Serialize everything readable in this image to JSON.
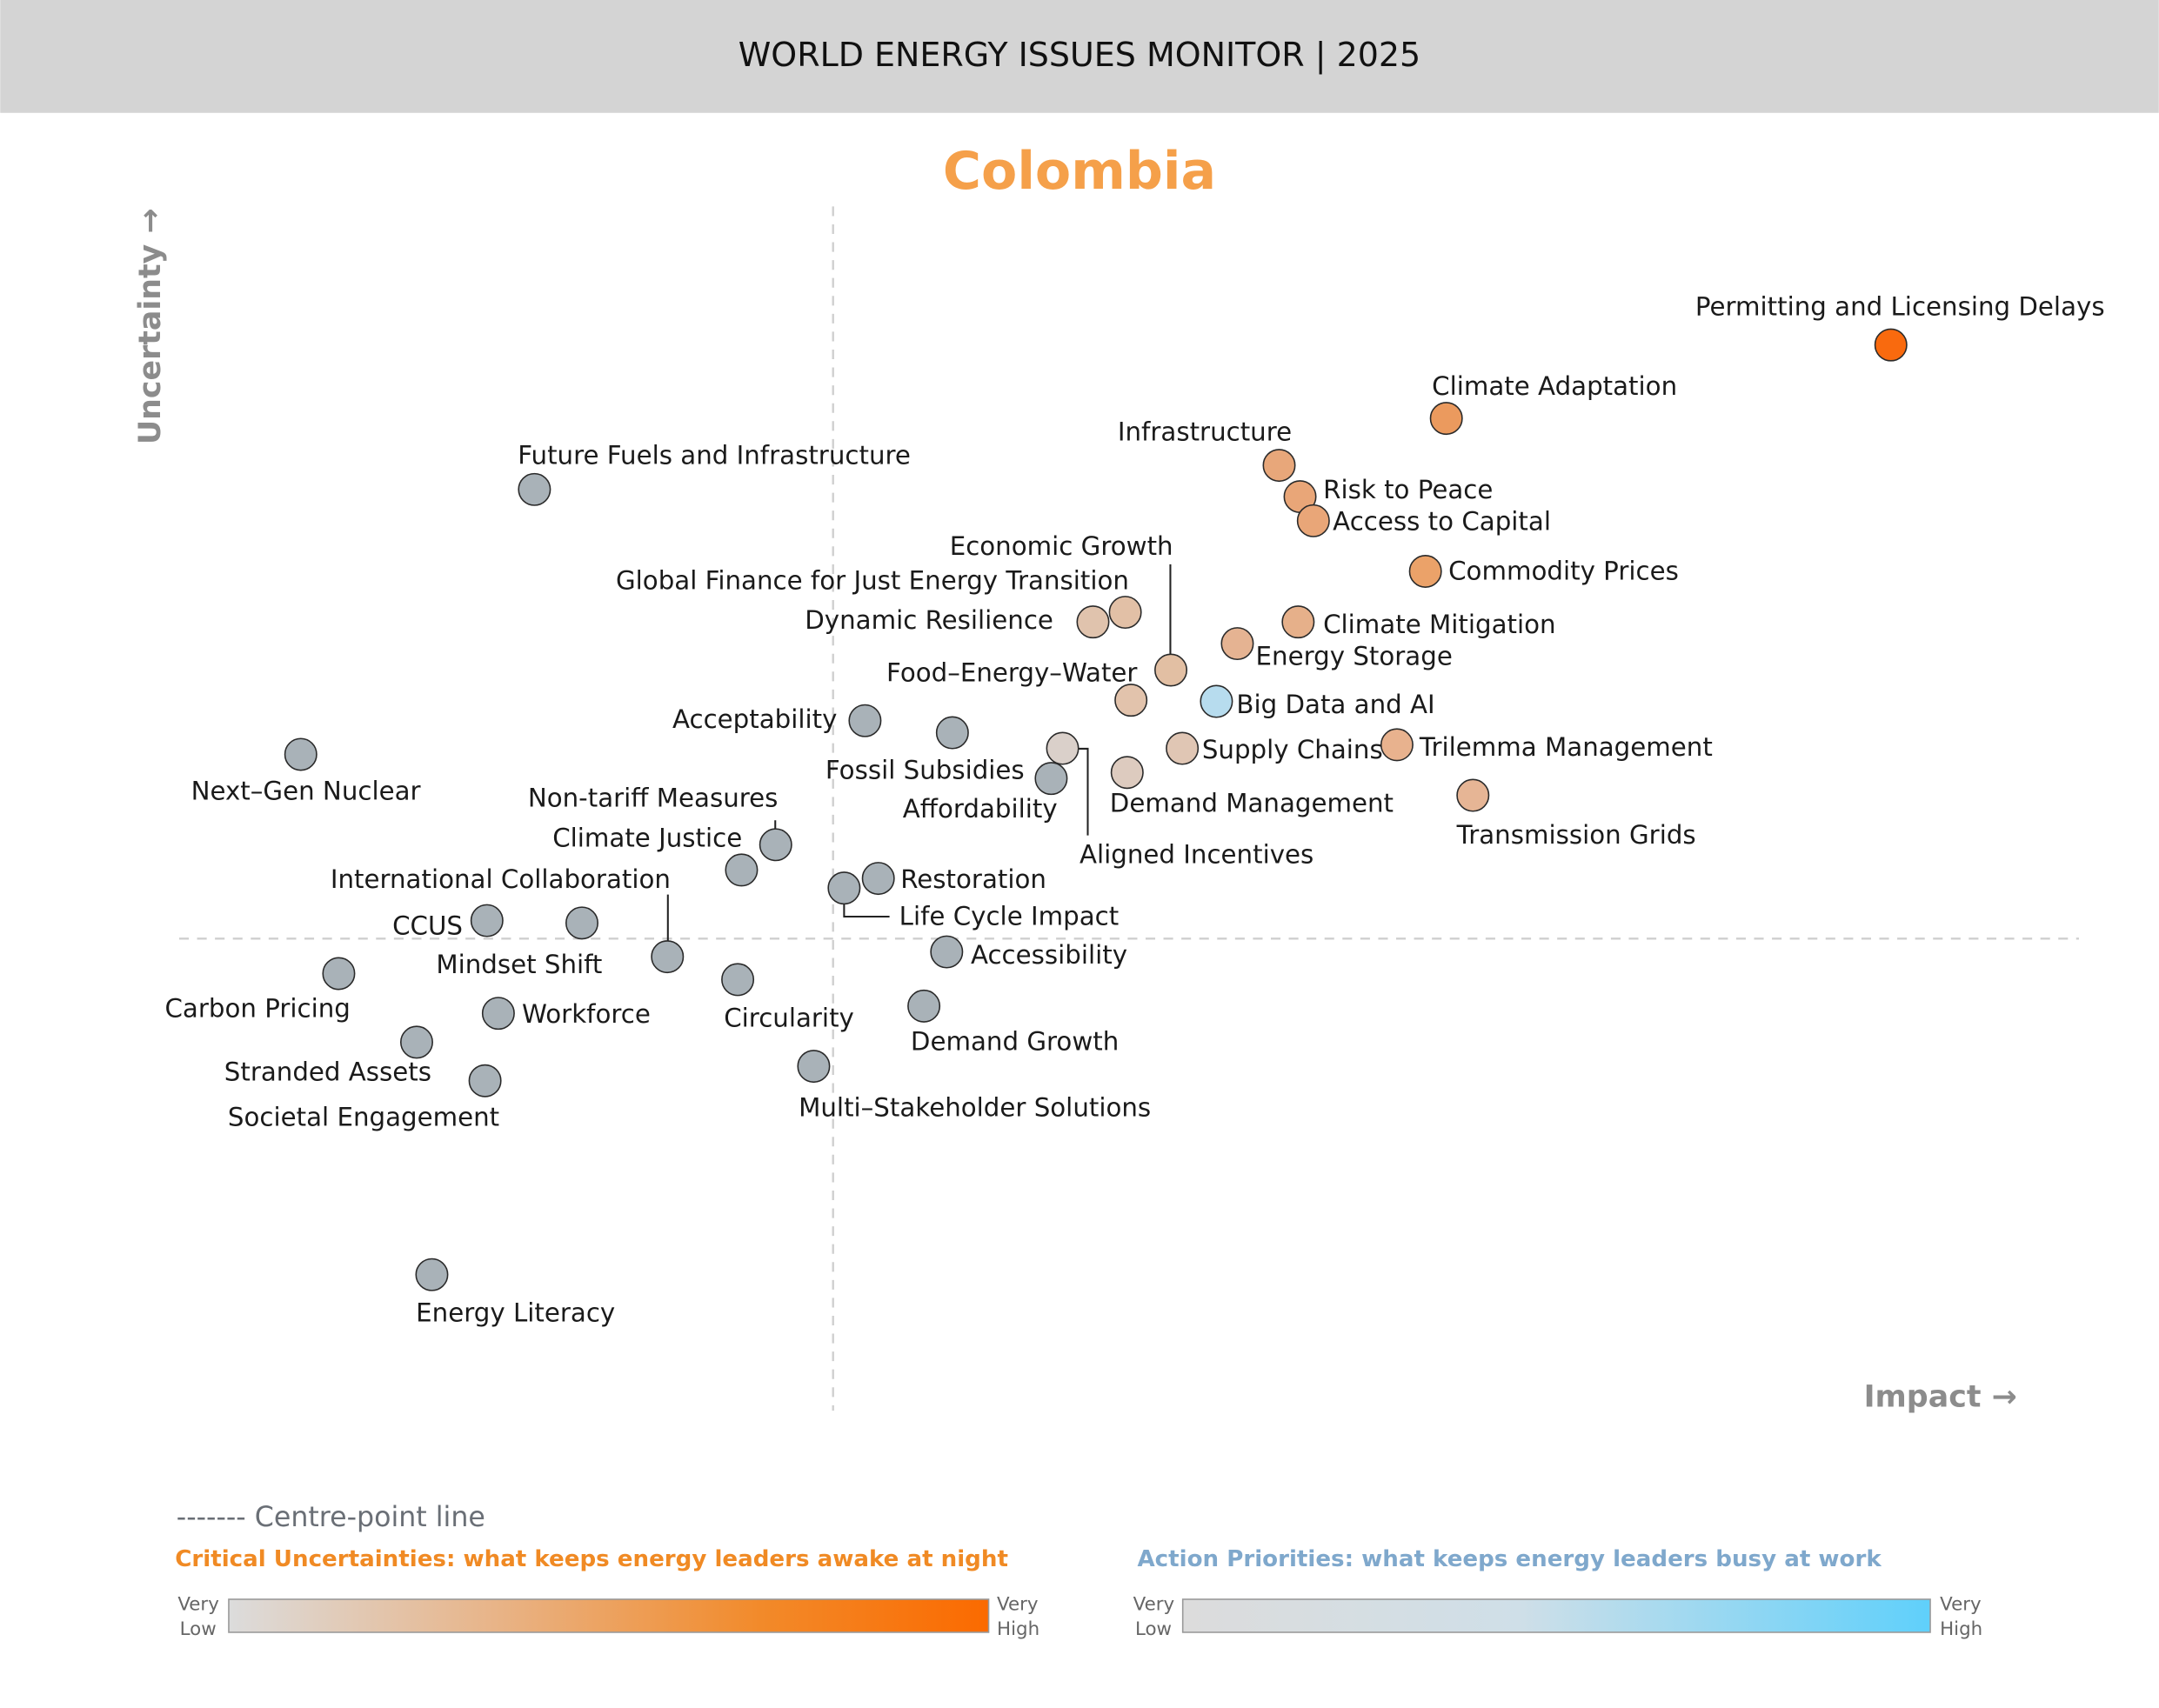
{
  "header": {
    "title": "WORLD ENERGY ISSUES MONITOR | 2025"
  },
  "country": "Colombia",
  "colors": {
    "header_bg": "#d4d4d4",
    "title": "#f5a04a",
    "grey_issue": "#a9b2b8",
    "uncertainty_low": "#dcdcdc",
    "uncertainty_high": "#fb6a00",
    "priority_low": "#dcdcdc",
    "priority_high": "#5fd0fb",
    "uncertainty_text": "#f08a24",
    "priority_text": "#7fa8cc"
  },
  "legend": {
    "centre_line": "------- Centre-point line",
    "uncertainties": "Critical Uncertainties: what keeps energy leaders awake at night",
    "priorities": "Action Priorities: what keeps energy leaders busy at work",
    "very_low": [
      "Very",
      "Low"
    ],
    "very_high": [
      "Very",
      "High"
    ]
  },
  "chart_data": {
    "type": "scatter",
    "xlabel": "Impact →",
    "ylabel": "Uncertainty →",
    "xlim": [
      0,
      100
    ],
    "ylim": [
      0,
      100
    ],
    "centre_point": {
      "impact": 34.4,
      "uncertainty": 39.2
    },
    "grid": false,
    "points": [
      {
        "label": "Permitting and Licensing Delays",
        "impact": 90.1,
        "uncertainty": 88.5,
        "color": "#f96a0e"
      },
      {
        "label": "Climate Adaptation",
        "impact": 66.7,
        "uncertainty": 82.4,
        "color": "#eb9a5e"
      },
      {
        "label": "Infrastructure",
        "impact": 57.9,
        "uncertainty": 78.5,
        "color": "#e8a77a"
      },
      {
        "label": "Risk to Peace",
        "impact": 59.0,
        "uncertainty": 75.9,
        "color": "#e9a678"
      },
      {
        "label": "Access to Capital",
        "impact": 59.7,
        "uncertainty": 73.9,
        "color": "#e9a678"
      },
      {
        "label": "Commodity Prices",
        "impact": 65.6,
        "uncertainty": 69.7,
        "color": "#eba269"
      },
      {
        "label": "Climate Mitigation",
        "impact": 58.9,
        "uncertainty": 65.5,
        "color": "#e6b08a"
      },
      {
        "label": "Energy Storage",
        "impact": 55.7,
        "uncertainty": 63.7,
        "color": "#e5b392"
      },
      {
        "label": "Economic Growth",
        "impact": 52.2,
        "uncertainty": 61.5,
        "color": "#e2bfa3"
      },
      {
        "label": "Global Finance for Just Energy Transition",
        "impact": 49.8,
        "uncertainty": 66.3,
        "color": "#e2c0a6"
      },
      {
        "label": "Dynamic Resilience",
        "impact": 48.1,
        "uncertainty": 65.5,
        "color": "#e0c3ad"
      },
      {
        "label": "Food–Energy–Water",
        "impact": 50.1,
        "uncertainty": 59.0,
        "color": "#e2c3ac"
      },
      {
        "label": "Big Data and AI",
        "impact": 54.6,
        "uncertainty": 58.9,
        "color": "#b7dcee"
      },
      {
        "label": "Supply Chains",
        "impact": 52.8,
        "uncertainty": 55.0,
        "color": "#e0c6b4"
      },
      {
        "label": "Trilemma Management",
        "impact": 64.1,
        "uncertainty": 55.3,
        "color": "#e8b28e"
      },
      {
        "label": "Transmission Grids",
        "impact": 68.1,
        "uncertainty": 51.1,
        "color": "#e6b595"
      },
      {
        "label": "Demand Management",
        "impact": 49.9,
        "uncertainty": 53.0,
        "color": "#ddcbbf"
      },
      {
        "label": "Aligned Incentives",
        "impact": 46.5,
        "uncertainty": 55.0,
        "color": "#dad0ca"
      },
      {
        "label": "Affordability",
        "impact": 45.9,
        "uncertainty": 52.5,
        "color": "#a9b2b8"
      },
      {
        "label": "Fossil Subsidies",
        "impact": 40.7,
        "uncertainty": 56.3,
        "color": "#a9b2b8"
      },
      {
        "label": "Acceptability",
        "impact": 36.1,
        "uncertainty": 57.3,
        "color": "#a9b2b8"
      },
      {
        "label": "Next–Gen Nuclear",
        "impact": 6.4,
        "uncertainty": 54.5,
        "color": "#a9b2b8"
      },
      {
        "label": "Future Fuels and Infrastructure",
        "impact": 18.7,
        "uncertainty": 76.5,
        "color": "#a9b2b8"
      },
      {
        "label": "Non-tariff Measures",
        "impact": 31.4,
        "uncertainty": 47.0,
        "color": "#a9b2b8"
      },
      {
        "label": "Climate Justice",
        "impact": 29.6,
        "uncertainty": 44.9,
        "color": "#a9b2b8"
      },
      {
        "label": "International Collaboration",
        "impact": 25.7,
        "uncertainty": 37.7,
        "color": "#a9b2b8"
      },
      {
        "label": "Restoration",
        "impact": 36.8,
        "uncertainty": 44.2,
        "color": "#a9b2b8"
      },
      {
        "label": "Life Cycle Impact",
        "impact": 35.0,
        "uncertainty": 43.4,
        "color": "#a9b2b8"
      },
      {
        "label": "CCUS",
        "impact": 16.2,
        "uncertainty": 40.7,
        "color": "#a9b2b8"
      },
      {
        "label": "Mindset Shift",
        "impact": 21.2,
        "uncertainty": 40.5,
        "color": "#a9b2b8"
      },
      {
        "label": "Accessibility",
        "impact": 40.4,
        "uncertainty": 38.1,
        "color": "#a9b2b8"
      },
      {
        "label": "Carbon Pricing",
        "impact": 8.4,
        "uncertainty": 36.3,
        "color": "#a9b2b8"
      },
      {
        "label": "Workforce",
        "impact": 16.8,
        "uncertainty": 33.0,
        "color": "#a9b2b8"
      },
      {
        "label": "Circularity",
        "impact": 29.4,
        "uncertainty": 35.8,
        "color": "#a9b2b8"
      },
      {
        "label": "Demand Growth",
        "impact": 39.2,
        "uncertainty": 33.6,
        "color": "#a9b2b8"
      },
      {
        "label": "Stranded Assets",
        "impact": 12.5,
        "uncertainty": 30.6,
        "color": "#a9b2b8"
      },
      {
        "label": "Societal Engagement",
        "impact": 16.1,
        "uncertainty": 27.4,
        "color": "#a9b2b8"
      },
      {
        "label": "Multi–Stakeholder Solutions",
        "impact": 33.4,
        "uncertainty": 28.6,
        "color": "#a9b2b8"
      },
      {
        "label": "Energy Literacy",
        "impact": 13.3,
        "uncertainty": 11.3,
        "color": "#a9b2b8"
      }
    ]
  }
}
